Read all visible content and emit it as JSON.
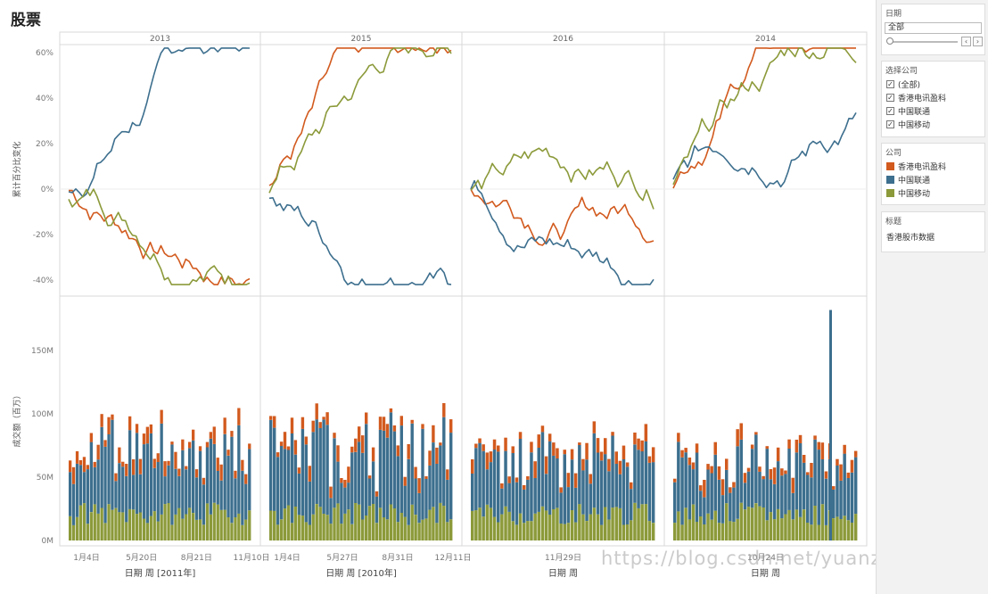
{
  "title": "股票",
  "facets": [
    "2013",
    "2015",
    "2016",
    "2014"
  ],
  "top_axis": {
    "title": "累计百分比变化",
    "ticks": [
      "60%",
      "40%",
      "20%",
      "0%",
      "-20%",
      "-40%"
    ]
  },
  "bottom_axis": {
    "title": "成交额（百万）",
    "ticks": [
      "150M",
      "100M",
      "50M",
      "0M"
    ]
  },
  "x_labels": [
    {
      "ticks": [
        "1月4日",
        "5月20日",
        "8月21日",
        "11月10日"
      ],
      "title": "日期 周 [2011年]"
    },
    {
      "ticks": [
        "1月4日",
        "5月27日",
        "8月31日",
        "12月11日"
      ],
      "title": "日期 周 [2010年]"
    },
    {
      "ticks": [
        "11月29日"
      ],
      "title": "日期 周"
    },
    {
      "ticks": [
        "10月24日"
      ],
      "title": "日期 周"
    }
  ],
  "colors": {
    "orange": "#d25a1e",
    "blue": "#3d6f8e",
    "olive": "#8c9a3a"
  },
  "sidebar": {
    "date_panel": {
      "title": "日期",
      "value": "全部",
      "prev": "‹",
      "next": "›"
    },
    "company_panel": {
      "title": "选择公司",
      "items": [
        {
          "label": "(全部)",
          "check": "✓"
        },
        {
          "label": "香港电讯盈科",
          "check": "✓"
        },
        {
          "label": "中国联通",
          "check": "✓"
        },
        {
          "label": "中国移动",
          "check": "✓"
        }
      ]
    },
    "legend_panel": {
      "title": "公司",
      "items": [
        {
          "label": "香港电讯盈科",
          "color": "#d25a1e"
        },
        {
          "label": "中国联通",
          "color": "#3d6f8e"
        },
        {
          "label": "中国移动",
          "color": "#8c9a3a"
        }
      ]
    },
    "mark_panel": {
      "title": "标题",
      "text": "香港股市数据"
    }
  },
  "watermark": "https://blog.csdn.net/yuanziok"
}
